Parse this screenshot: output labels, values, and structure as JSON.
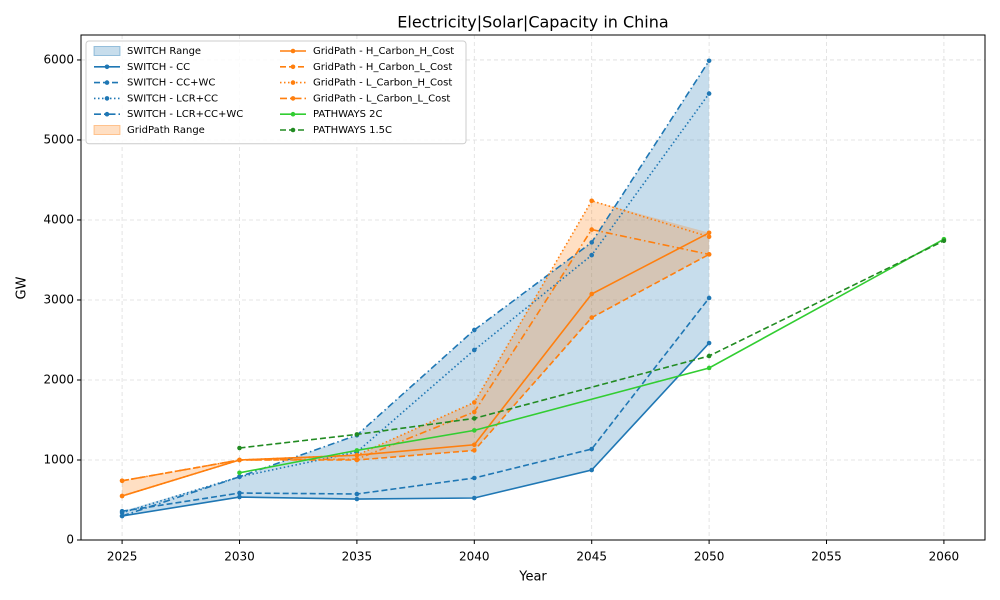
{
  "chart_data": {
    "type": "line",
    "title": "Electricity|Solar|Capacity in China",
    "xlabel": "Year",
    "ylabel": "GW",
    "xlim": [
      2023.25,
      2061.75
    ],
    "xticks": [
      2025,
      2030,
      2035,
      2040,
      2045,
      2050,
      2055,
      2060
    ],
    "ylim": [
      0,
      6312
    ],
    "yticks": [
      0,
      1000,
      2000,
      3000,
      4000,
      5000,
      6000
    ],
    "grid": true,
    "legend": "upper left",
    "ranges": [
      {
        "name": "SWITCH Range",
        "color": "#1f77b4",
        "members": [
          0,
          1,
          2,
          3
        ]
      },
      {
        "name": "GridPath Range",
        "color": "#ff7f0e",
        "members": [
          4,
          5,
          6,
          7
        ]
      }
    ],
    "series": [
      {
        "name": "SWITCH - CC",
        "color": "#1f77b4",
        "style": "solid",
        "x": [
          2025,
          2030,
          2035,
          2040,
          2045,
          2050
        ],
        "values": [
          300,
          537,
          512,
          525,
          875,
          2462
        ]
      },
      {
        "name": "SWITCH - CC+WC",
        "color": "#1f77b4",
        "style": "dashed",
        "x": [
          2025,
          2030,
          2035,
          2040,
          2045,
          2050
        ],
        "values": [
          360,
          587,
          575,
          775,
          1137,
          3025
        ]
      },
      {
        "name": "SWITCH - LCR+CC",
        "color": "#1f77b4",
        "style": "dotted",
        "x": [
          2025,
          2030,
          2035,
          2040,
          2045,
          2050
        ],
        "values": [
          340,
          790,
          1100,
          2375,
          3560,
          5580
        ]
      },
      {
        "name": "SWITCH - LCR+CC+WC",
        "color": "#1f77b4",
        "style": "dashdot",
        "x": [
          2025,
          2030,
          2035,
          2040,
          2045,
          2050
        ],
        "values": [
          300,
          790,
          1310,
          2625,
          3720,
          5990
        ]
      },
      {
        "name": "GridPath - H_Carbon_H_Cost",
        "color": "#ff7f0e",
        "style": "solid",
        "x": [
          2025,
          2030,
          2035,
          2040,
          2045,
          2050
        ],
        "values": [
          550,
          1000,
          1060,
          1190,
          3075,
          3840
        ]
      },
      {
        "name": "GridPath - H_Carbon_L_Cost",
        "color": "#ff7f0e",
        "style": "dashed",
        "x": [
          2025,
          2030,
          2035,
          2040,
          2045,
          2050
        ],
        "values": [
          740,
          1000,
          1000,
          1120,
          2780,
          3570
        ]
      },
      {
        "name": "GridPath - L_Carbon_H_Cost",
        "color": "#ff7f0e",
        "style": "dotted",
        "x": [
          2025,
          2030,
          2035,
          2040,
          2045,
          2050
        ],
        "values": [
          550,
          1000,
          1060,
          1720,
          4240,
          3790
        ]
      },
      {
        "name": "GridPath - L_Carbon_L_Cost",
        "color": "#ff7f0e",
        "style": "dashdot",
        "x": [
          2025,
          2030,
          2035,
          2040,
          2045,
          2050
        ],
        "values": [
          740,
          1000,
          1010,
          1600,
          3880,
          3570
        ]
      },
      {
        "name": "PATHWAYS 2C",
        "color": "#32cd32",
        "style": "solid",
        "x": [
          2030,
          2035,
          2040,
          2050,
          2060
        ],
        "values": [
          840,
          1120,
          1370,
          2150,
          3760
        ]
      },
      {
        "name": "PATHWAYS 1.5C",
        "color": "#228b22",
        "style": "dashed",
        "x": [
          2030,
          2035,
          2040,
          2050,
          2060
        ],
        "values": [
          1150,
          1320,
          1520,
          2300,
          3740
        ]
      }
    ]
  }
}
